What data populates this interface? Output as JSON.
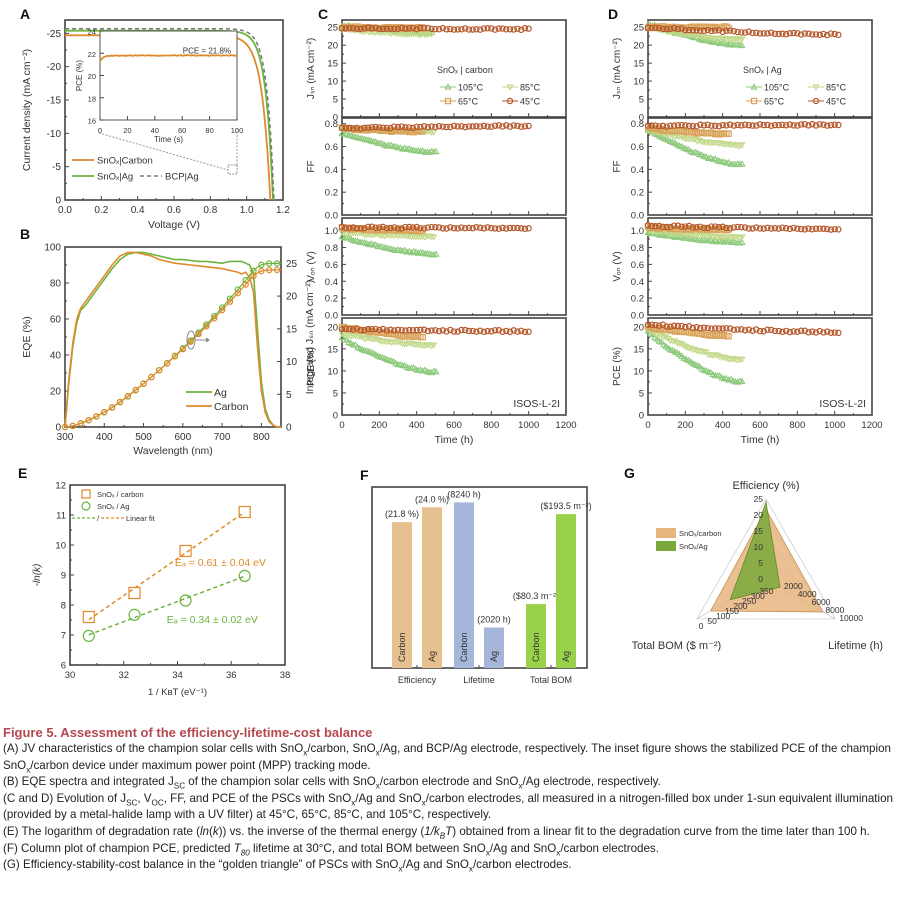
{
  "figure": {
    "title": "Figure 5.  Assessment of the efficiency-lifetime-cost balance",
    "panel_labels": [
      "A",
      "B",
      "C",
      "D",
      "E",
      "F",
      "G"
    ]
  },
  "caption": {
    "A": [
      {
        "t": "(A) JV characteristics of the champion solar cells with SnO"
      },
      {
        "sub": "x"
      },
      {
        "t": "/carbon, SnO"
      },
      {
        "sub": "x"
      },
      {
        "t": "/Ag, and BCP/Ag electrode, respectively. The inset figure shows the stabilized PCE of the champion SnO"
      },
      {
        "sub": "x"
      },
      {
        "t": "/carbon device under maximum power point (MPP) tracking mode."
      }
    ],
    "B": [
      {
        "t": "(B) EQE spectra and integrated J"
      },
      {
        "sub": "SC"
      },
      {
        "t": " of the champion solar cells with SnO"
      },
      {
        "sub": "x"
      },
      {
        "t": "/carbon electrode and SnO"
      },
      {
        "sub": "x"
      },
      {
        "t": "/Ag electrode, respectively."
      }
    ],
    "CD": [
      {
        "t": "(C and D) Evolution of J"
      },
      {
        "sub": "SC"
      },
      {
        "t": ", V"
      },
      {
        "sub": "OC"
      },
      {
        "t": ", FF, and PCE of the PSCs with SnO"
      },
      {
        "sub": "x"
      },
      {
        "t": "/Ag and SnO"
      },
      {
        "sub": "x"
      },
      {
        "t": "/carbon electrodes, all measured in a nitrogen-filled box under 1-sun equivalent illumination (provided by a metal-halide lamp with a UV filter) at 45°C, 65°C, 85°C, and 105°C, respectively."
      }
    ],
    "E": [
      {
        "t": "(E) The logarithm of degradation rate ("
      },
      {
        "i": "ln"
      },
      {
        "t": "("
      },
      {
        "i": "k"
      },
      {
        "t": ")) vs. the inverse of the thermal energy ("
      },
      {
        "i": "1/k"
      },
      {
        "isub": "B"
      },
      {
        "i": "T"
      },
      {
        "t": ") obtained from a linear fit to the degradation curve from the time later than 100 h."
      }
    ],
    "F": [
      {
        "t": "(F) Column plot of champion PCE, predicted "
      },
      {
        "i": "T"
      },
      {
        "isub": "80"
      },
      {
        "t": " lifetime at 30°C, and total BOM between SnO"
      },
      {
        "sub": "x"
      },
      {
        "t": "/Ag and SnO"
      },
      {
        "sub": "x"
      },
      {
        "t": "/carbon electrodes."
      }
    ],
    "G": [
      {
        "t": "(G) Efficiency-stability-cost balance in the “golden triangle” of PSCs with SnO"
      },
      {
        "sub": "x"
      },
      {
        "t": "/Ag and SnO"
      },
      {
        "sub": "x"
      },
      {
        "t": "/carbon electrodes."
      }
    ]
  },
  "colors": {
    "carbon": "#e08a2c",
    "ag": "#6cb33f",
    "bcp": "#777777",
    "c105": "#8cc97a",
    "c85": "#c2d98a",
    "c65": "#d9a35a",
    "c45": "#b5562a",
    "bar_eff": "#e6c08f",
    "bar_life": "#a6b6da",
    "bar_bom": "#9ad14b",
    "radar_carbon": "#e8b57f",
    "radar_ag": "#7aa83a",
    "caption_title": "#b5474f"
  },
  "chart_data": [
    {
      "id": "A",
      "type": "line",
      "xlabel": "Voltage (V)",
      "ylabel": "Current density (mA cm⁻²)",
      "xlim": [
        0,
        1.2
      ],
      "ylim": [
        -27,
        0
      ],
      "xticks": [
        0.0,
        0.2,
        0.4,
        0.6,
        0.8,
        1.0,
        1.2
      ],
      "xticklabels": [
        "0.0",
        "0.2",
        "0.4",
        "0.6",
        "0.8",
        "1.0",
        "1.2"
      ],
      "yticks": [
        0,
        -5,
        -10,
        -15,
        -20,
        -25
      ],
      "yticklabels": [
        "0",
        "-5",
        "-10",
        "-15",
        "-20",
        "-25"
      ],
      "series": [
        {
          "name": "SnOx|Carbon",
          "legend": "SnOₓ|Carbon",
          "style": "solid",
          "color": "carbon",
          "jsc": -24.7,
          "voc": 1.13,
          "n": 0.045
        },
        {
          "name": "SnOx|Ag",
          "legend": "SnOₓ|Ag",
          "style": "solid",
          "color": "ag",
          "jsc": -25.4,
          "voc": 1.145,
          "n": 0.04
        },
        {
          "name": "BCP|Ag",
          "legend": "BCP|Ag",
          "style": "dashed",
          "color": "bcp",
          "jsc": -25.7,
          "voc": 1.15,
          "n": 0.038
        }
      ],
      "inset": {
        "xlabel": "Time (s)",
        "ylabel": "PCE (%)",
        "xlim": [
          0,
          100
        ],
        "ylim": [
          16,
          24
        ],
        "xticks": [
          0,
          20,
          40,
          60,
          80,
          100
        ],
        "yticks": [
          16,
          18,
          20,
          22,
          24
        ],
        "annotation": "PCE = 21.8%",
        "steady_value": 21.8,
        "start_value": 21.3
      }
    },
    {
      "id": "B",
      "type": "line",
      "xlabel": "Wavelength (nm)",
      "ylabel": "EQE (%)",
      "y2label": "Integrated Jₛₙ (mA cm⁻²)",
      "xlim": [
        300,
        850
      ],
      "ylim": [
        0,
        100
      ],
      "y2lim": [
        0,
        27.5
      ],
      "xticks": [
        300,
        400,
        500,
        600,
        700,
        800
      ],
      "yticks": [
        0,
        20,
        40,
        60,
        80,
        100
      ],
      "y2ticks": [
        0,
        5,
        10,
        15,
        20,
        25
      ],
      "x": [
        300,
        310,
        320,
        330,
        340,
        350,
        360,
        380,
        400,
        420,
        440,
        460,
        480,
        500,
        520,
        540,
        560,
        580,
        600,
        620,
        640,
        660,
        680,
        700,
        720,
        740,
        750,
        760,
        770,
        780,
        790,
        800,
        810,
        820,
        830,
        840,
        850
      ],
      "series": [
        {
          "name": "Ag",
          "color": "ag",
          "eqe": [
            0,
            25,
            45,
            58,
            65,
            67,
            70,
            76,
            82,
            88,
            93,
            96,
            97,
            97,
            96,
            95,
            94,
            93,
            93,
            92.5,
            92,
            92,
            91.5,
            91,
            92,
            92,
            92,
            91,
            90,
            85,
            55,
            25,
            10,
            4,
            1,
            0,
            0
          ]
        },
        {
          "name": "Carbon",
          "color": "carbon",
          "eqe": [
            0,
            27,
            47,
            60,
            66,
            69,
            72,
            78,
            84,
            90,
            95,
            97,
            97,
            96,
            95,
            93,
            92,
            91,
            90.5,
            90,
            89.5,
            89,
            88.5,
            88,
            87,
            86,
            85,
            86,
            83,
            75,
            45,
            20,
            8,
            3,
            1,
            0,
            0
          ]
        }
      ],
      "integrated": [
        {
          "name": "Ag",
          "color": "ag",
          "final": 25.0
        },
        {
          "name": "Carbon",
          "color": "carbon",
          "final": 24.0
        }
      ]
    },
    {
      "id": "C",
      "type": "scatter",
      "legend_title": "SnOₓ | carbon",
      "stamp": "ISOS-L-2I",
      "xlabel": "Time (h)",
      "xlim": [
        0,
        1200
      ],
      "xticks": [
        0,
        200,
        400,
        600,
        800,
        1000,
        1200
      ],
      "subplots": [
        {
          "ylabel": "Jₛₙ (mA cm⁻²)",
          "ylim": [
            0,
            27
          ],
          "yticks": [
            0,
            5,
            10,
            15,
            20,
            25
          ],
          "series": {
            "105": [
              25.5,
              23.5,
              490
            ],
            "85": [
              24.5,
              23.0,
              490
            ],
            "65": [
              25.0,
              24.8,
              440
            ],
            "45": [
              24.8,
              24.5,
              1010
            ]
          }
        },
        {
          "ylabel": "FF",
          "ylim": [
            0,
            0.85
          ],
          "yticks": [
            0.0,
            0.2,
            0.4,
            0.6,
            0.8
          ],
          "series": {
            "105": [
              0.72,
              0.55,
              510
            ],
            "85": [
              0.76,
              0.73,
              500
            ],
            "65": [
              0.76,
              0.73,
              440
            ],
            "45": [
              0.76,
              0.78,
              1010
            ]
          }
        },
        {
          "ylabel": "Vₒₙ (V)",
          "ylim": [
            0,
            1.15
          ],
          "yticks": [
            0.0,
            0.2,
            0.4,
            0.6,
            0.8,
            1.0
          ],
          "series": {
            "105": [
              0.93,
              0.72,
              510
            ],
            "85": [
              0.98,
              0.93,
              500
            ],
            "65": [
              1.03,
              1.0,
              440
            ],
            "45": [
              1.04,
              1.03,
              1010
            ]
          }
        },
        {
          "ylabel": "PCE (%)",
          "ylim": [
            0,
            22
          ],
          "yticks": [
            0,
            5,
            10,
            15,
            20
          ],
          "series": {
            "105": [
              17.5,
              9.7,
              510
            ],
            "85": [
              18.5,
              15.8,
              500
            ],
            "65": [
              20.0,
              17.8,
              440
            ],
            "45": [
              19.5,
              19.0,
              1010
            ]
          }
        }
      ],
      "legend": [
        {
          "label": "105°C",
          "key": "105"
        },
        {
          "label": "85°C",
          "key": "85"
        },
        {
          "label": "65°C",
          "key": "65"
        },
        {
          "label": "45°C",
          "key": "45"
        }
      ]
    },
    {
      "id": "D",
      "type": "scatter",
      "legend_title": "SnOₓ | Ag",
      "stamp": "ISOS-L-2I",
      "xlabel": "Time (h)",
      "xlim": [
        0,
        1200
      ],
      "xticks": [
        0,
        200,
        400,
        600,
        800,
        1000,
        1200
      ],
      "subplots": [
        {
          "ylabel": "Jₛₙ (mA cm⁻²)",
          "ylim": [
            0,
            27
          ],
          "yticks": [
            0,
            5,
            10,
            15,
            20,
            25
          ],
          "series": {
            "105": [
              26.0,
              20.0,
              510
            ],
            "85": [
              25.0,
              21.5,
              510
            ],
            "65": [
              25.0,
              25.0,
              440
            ],
            "45": [
              25.0,
              23.0,
              1030
            ]
          }
        },
        {
          "ylabel": "FF",
          "ylim": [
            0,
            0.85
          ],
          "yticks": [
            0.0,
            0.2,
            0.4,
            0.6,
            0.8
          ],
          "series": {
            "105": [
              0.75,
              0.44,
              510
            ],
            "85": [
              0.75,
              0.61,
              510
            ],
            "65": [
              0.76,
              0.71,
              440
            ],
            "45": [
              0.78,
              0.79,
              1030
            ]
          }
        },
        {
          "ylabel": "Vₒₙ (V)",
          "ylim": [
            0,
            1.15
          ],
          "yticks": [
            0.0,
            0.2,
            0.4,
            0.6,
            0.8,
            1.0
          ],
          "series": {
            "105": [
              0.98,
              0.86,
              510
            ],
            "85": [
              1.0,
              0.92,
              510
            ],
            "65": [
              1.04,
              1.01,
              440
            ],
            "45": [
              1.06,
              1.02,
              1030
            ]
          }
        },
        {
          "ylabel": "PCE (%)",
          "ylim": [
            0,
            22
          ],
          "yticks": [
            0,
            5,
            10,
            15,
            20
          ],
          "series": {
            "105": [
              19.0,
              7.5,
              510
            ],
            "85": [
              19.5,
              12.5,
              510
            ],
            "65": [
              20.0,
              18.0,
              440
            ],
            "45": [
              20.5,
              18.8,
              1030
            ]
          }
        }
      ],
      "legend": [
        {
          "label": "105°C",
          "key": "105"
        },
        {
          "label": "85°C",
          "key": "85"
        },
        {
          "label": "65°C",
          "key": "65"
        },
        {
          "label": "45°C",
          "key": "45"
        }
      ]
    },
    {
      "id": "E",
      "type": "scatter",
      "xlabel": "1 / KʙT (eV⁻¹)",
      "ylabel": "-ln(k)",
      "xlim": [
        30,
        38
      ],
      "ylim": [
        6,
        12
      ],
      "xticks": [
        30,
        32,
        34,
        36,
        38
      ],
      "yticks": [
        6,
        7,
        8,
        9,
        10,
        11,
        12
      ],
      "series": [
        {
          "name": "SnOx / carbon",
          "legend": "SnOₓ / carbon",
          "marker": "square",
          "color": "carbon",
          "x": [
            30.7,
            32.4,
            34.3,
            36.5
          ],
          "y": [
            7.6,
            8.4,
            9.8,
            11.1
          ]
        },
        {
          "name": "SnOx / Ag",
          "legend": "SnOₓ / Ag",
          "marker": "circle",
          "color": "ag",
          "x": [
            30.7,
            32.4,
            34.3,
            36.5
          ],
          "y": [
            6.97,
            7.67,
            8.15,
            8.97
          ]
        }
      ],
      "fit_legend": "Linear fit",
      "annotations": [
        {
          "text": "Eₐ = 0.61 ± 0.04 eV",
          "color": "carbon",
          "x": 33.9,
          "y": 9.3
        },
        {
          "text": "Eₐ = 0.34 ± 0.02 eV",
          "color": "ag",
          "x": 33.6,
          "y": 7.4
        }
      ]
    },
    {
      "id": "F",
      "type": "bar",
      "groups": [
        "Efficiency",
        "Lifetime",
        "Total BOM"
      ],
      "bars": [
        {
          "group": "Efficiency",
          "name": "Carbon",
          "value": 21.8,
          "label": "(21.8 %)",
          "color": "bar_eff",
          "rel": 0.806
        },
        {
          "group": "Efficiency",
          "name": "Ag",
          "value": 24.0,
          "label": "(24.0 %)",
          "color": "bar_eff",
          "rel": 0.888
        },
        {
          "group": "Lifetime",
          "name": "Carbon",
          "value": 8240,
          "label": "(8240 h)",
          "color": "bar_life",
          "rel": 0.915
        },
        {
          "group": "Lifetime",
          "name": "Ag",
          "value": 2020,
          "label": "(2020 h)",
          "color": "bar_life",
          "rel": 0.224
        },
        {
          "group": "Total BOM",
          "name": "Carbon",
          "value": 80.3,
          "label": "($80.3 m⁻²)",
          "color": "bar_bom",
          "rel": 0.353
        },
        {
          "group": "Total BOM",
          "name": "Ag",
          "value": 193.5,
          "label": "($193.5 m⁻²)",
          "color": "bar_bom",
          "rel": 0.85
        }
      ]
    },
    {
      "id": "G",
      "type": "radar",
      "axes": [
        {
          "name": "Efficiency (%)",
          "min": 0,
          "max": 25,
          "ticks": [
            0,
            5,
            10,
            15,
            20,
            25
          ]
        },
        {
          "name": "Lifetime (h)",
          "min": 0,
          "max": 10000,
          "ticks": [
            2000,
            4000,
            6000,
            8000,
            10000
          ]
        },
        {
          "name": "Total BOM ($ m⁻²)",
          "min": 400,
          "max": 0,
          "ticks": [
            350,
            300,
            250,
            200,
            150,
            100,
            50,
            0
          ]
        }
      ],
      "series": [
        {
          "name": "SnOx/carbon",
          "legend": "SnOₓ/carbon",
          "color": "radar_carbon",
          "values": [
            21.8,
            8240,
            80.3
          ]
        },
        {
          "name": "SnOx/Ag",
          "legend": "SnOₓ/Ag",
          "color": "radar_ag",
          "values": [
            24.0,
            2020,
            193.5
          ]
        }
      ]
    }
  ]
}
